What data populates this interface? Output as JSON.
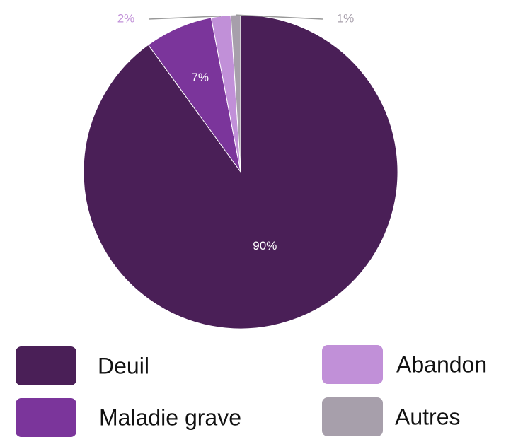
{
  "chart_data": {
    "type": "pie",
    "categories": [
      "Deuil",
      "Maladie grave",
      "Abandon",
      "Autres"
    ],
    "values": [
      90,
      7,
      2,
      1
    ],
    "value_labels": [
      "90%",
      "7%",
      "2%",
      "1%"
    ],
    "colors": [
      "#4a1f57",
      "#7b359b",
      "#c190d8",
      "#a79fab"
    ]
  }
}
